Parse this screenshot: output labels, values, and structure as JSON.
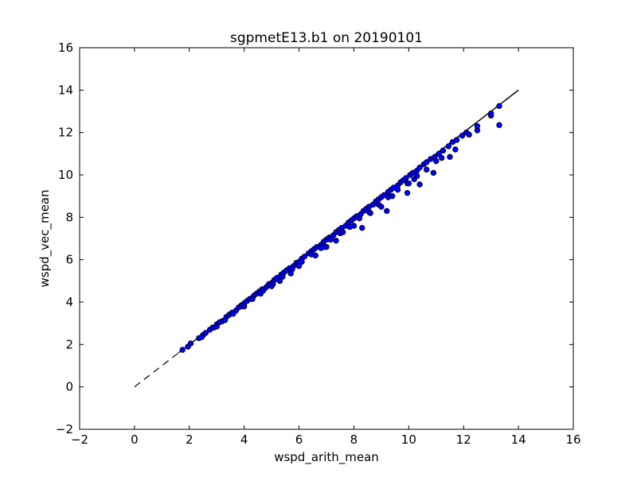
{
  "chart_data": {
    "type": "scatter",
    "title": "sgpmetE13.b1 on 20190101",
    "xlabel": "wspd_arith_mean",
    "ylabel": "wspd_vec_mean",
    "xlim": [
      -2,
      16
    ],
    "ylim": [
      -2,
      16
    ],
    "xticks": [
      "−2",
      "0",
      "2",
      "4",
      "6",
      "8",
      "10",
      "12",
      "14",
      "16"
    ],
    "yticks": [
      "−2",
      "0",
      "2",
      "4",
      "6",
      "8",
      "10",
      "12",
      "14",
      "16"
    ],
    "grid": false,
    "reference_line": {
      "from": [
        0,
        0
      ],
      "to": [
        14,
        14
      ],
      "style": "dashed then solid",
      "color": "#000000"
    },
    "marker_color": "#0000ff",
    "marker_edge": "#000000",
    "series": [
      {
        "values": [
          [
            1.75,
            1.75
          ],
          [
            1.95,
            1.9
          ],
          [
            2.05,
            2.05
          ],
          [
            2.35,
            2.3
          ],
          [
            2.5,
            2.45
          ],
          [
            2.6,
            2.55
          ],
          [
            2.75,
            2.7
          ],
          [
            2.85,
            2.8
          ],
          [
            3.0,
            2.95
          ],
          [
            3.1,
            3.05
          ],
          [
            3.2,
            3.1
          ],
          [
            3.35,
            3.3
          ],
          [
            3.45,
            3.4
          ],
          [
            3.55,
            3.5
          ],
          [
            3.7,
            3.6
          ],
          [
            3.8,
            3.75
          ],
          [
            3.9,
            3.85
          ],
          [
            4.0,
            3.95
          ],
          [
            4.1,
            4.05
          ],
          [
            4.2,
            4.15
          ],
          [
            4.35,
            4.3
          ],
          [
            4.45,
            4.4
          ],
          [
            4.55,
            4.5
          ],
          [
            4.65,
            4.6
          ],
          [
            4.8,
            4.7
          ],
          [
            4.9,
            4.85
          ],
          [
            5.0,
            4.9
          ],
          [
            5.1,
            5.05
          ],
          [
            5.2,
            5.15
          ],
          [
            5.35,
            5.3
          ],
          [
            5.45,
            5.4
          ],
          [
            5.55,
            5.5
          ],
          [
            5.65,
            5.6
          ],
          [
            5.8,
            5.7
          ],
          [
            5.9,
            5.85
          ],
          [
            6.0,
            5.9
          ],
          [
            6.1,
            6.05
          ],
          [
            6.2,
            6.15
          ],
          [
            6.35,
            6.3
          ],
          [
            6.45,
            6.4
          ],
          [
            6.55,
            6.5
          ],
          [
            6.65,
            6.6
          ],
          [
            6.8,
            6.7
          ],
          [
            6.9,
            6.85
          ],
          [
            7.0,
            6.95
          ],
          [
            7.1,
            7.05
          ],
          [
            7.25,
            7.15
          ],
          [
            7.35,
            7.3
          ],
          [
            7.45,
            7.4
          ],
          [
            7.55,
            7.5
          ],
          [
            7.7,
            7.6
          ],
          [
            7.8,
            7.75
          ],
          [
            7.9,
            7.85
          ],
          [
            8.0,
            7.95
          ],
          [
            8.1,
            8.05
          ],
          [
            8.25,
            8.15
          ],
          [
            8.35,
            8.3
          ],
          [
            8.45,
            8.4
          ],
          [
            8.55,
            8.5
          ],
          [
            8.7,
            8.6
          ],
          [
            8.8,
            8.75
          ],
          [
            8.9,
            8.85
          ],
          [
            9.0,
            8.95
          ],
          [
            9.1,
            9.05
          ],
          [
            9.25,
            9.2
          ],
          [
            9.35,
            9.3
          ],
          [
            9.45,
            9.4
          ],
          [
            9.6,
            9.5
          ],
          [
            9.7,
            9.65
          ],
          [
            9.8,
            9.75
          ],
          [
            9.9,
            9.85
          ],
          [
            10.05,
            10.0
          ],
          [
            10.15,
            10.1
          ],
          [
            10.3,
            10.2
          ],
          [
            10.4,
            10.35
          ],
          [
            10.55,
            10.5
          ],
          [
            10.65,
            10.6
          ],
          [
            10.8,
            10.75
          ],
          [
            10.95,
            10.85
          ],
          [
            11.1,
            11.0
          ],
          [
            11.25,
            11.15
          ],
          [
            11.45,
            11.35
          ],
          [
            11.6,
            11.55
          ],
          [
            11.75,
            11.65
          ],
          [
            11.95,
            11.85
          ],
          [
            12.1,
            12.0
          ],
          [
            2.45,
            2.35
          ],
          [
            2.9,
            2.8
          ],
          [
            3.3,
            3.15
          ],
          [
            3.6,
            3.45
          ],
          [
            3.95,
            3.8
          ],
          [
            4.3,
            4.15
          ],
          [
            4.7,
            4.55
          ],
          [
            5.05,
            4.85
          ],
          [
            5.4,
            5.2
          ],
          [
            5.75,
            5.55
          ],
          [
            6.1,
            5.9
          ],
          [
            6.45,
            6.25
          ],
          [
            6.8,
            6.55
          ],
          [
            7.15,
            6.95
          ],
          [
            7.5,
            7.25
          ],
          [
            7.85,
            7.55
          ],
          [
            8.2,
            7.95
          ],
          [
            8.55,
            8.25
          ],
          [
            8.9,
            8.6
          ],
          [
            9.25,
            8.95
          ],
          [
            9.6,
            9.3
          ],
          [
            9.95,
            9.6
          ],
          [
            10.3,
            9.95
          ],
          [
            10.65,
            10.25
          ],
          [
            11.0,
            10.65
          ],
          [
            5.7,
            5.35
          ],
          [
            6.6,
            6.2
          ],
          [
            7.35,
            6.9
          ],
          [
            8.3,
            7.5
          ],
          [
            9.2,
            8.3
          ],
          [
            9.95,
            9.15
          ],
          [
            10.4,
            9.55
          ],
          [
            10.9,
            10.1
          ],
          [
            11.5,
            10.85
          ],
          [
            11.7,
            11.2
          ],
          [
            12.2,
            11.9
          ],
          [
            12.5,
            12.1
          ],
          [
            12.5,
            12.3
          ],
          [
            13.0,
            12.8
          ],
          [
            13.0,
            12.9
          ],
          [
            13.3,
            13.25
          ],
          [
            13.3,
            12.35
          ],
          [
            10.0,
            9.6
          ],
          [
            9.0,
            8.5
          ],
          [
            8.0,
            7.6
          ],
          [
            7.0,
            6.6
          ],
          [
            6.0,
            5.7
          ],
          [
            5.0,
            4.75
          ],
          [
            4.0,
            3.8
          ],
          [
            3.0,
            2.85
          ],
          [
            8.6,
            8.2
          ],
          [
            9.4,
            9.0
          ],
          [
            10.2,
            9.8
          ],
          [
            11.2,
            10.8
          ],
          [
            7.6,
            7.3
          ],
          [
            6.9,
            6.6
          ],
          [
            5.3,
            5.0
          ],
          [
            4.6,
            4.4
          ]
        ]
      }
    ]
  }
}
